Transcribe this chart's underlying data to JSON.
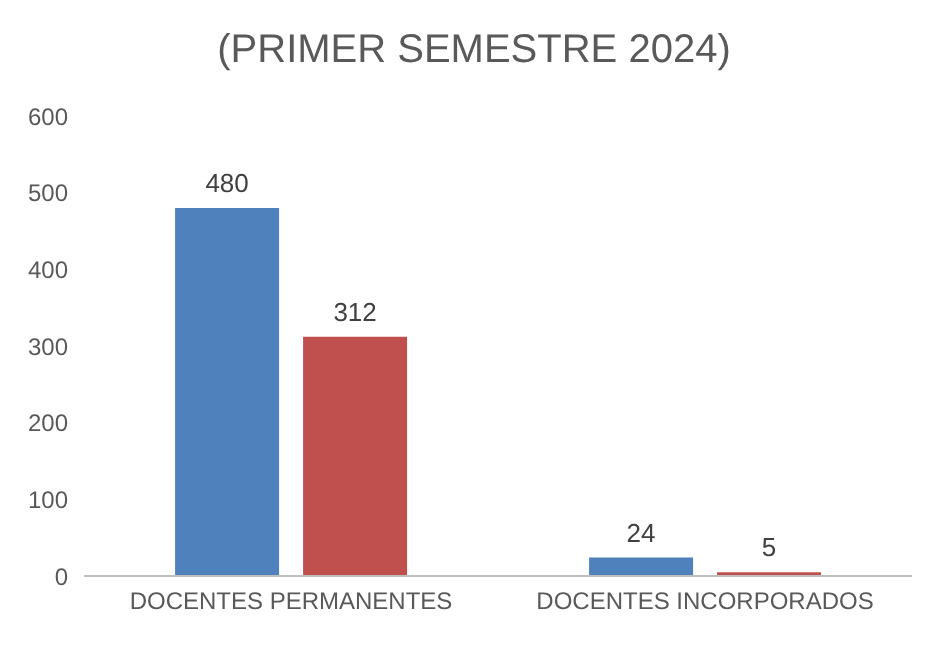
{
  "chart_data": {
    "type": "bar",
    "title": "(PRIMER SEMESTRE 2024)",
    "categories": [
      "DOCENTES PERMANENTES",
      "DOCENTES INCORPORADOS"
    ],
    "series": [
      {
        "color": "#4f81bd",
        "values": [
          480,
          24
        ]
      },
      {
        "color": "#c0504d",
        "values": [
          312,
          5
        ]
      }
    ],
    "ylim": [
      0,
      600
    ],
    "yticks": [
      0,
      100,
      200,
      300,
      400,
      500,
      600
    ],
    "grid": false,
    "data_labels": true
  }
}
